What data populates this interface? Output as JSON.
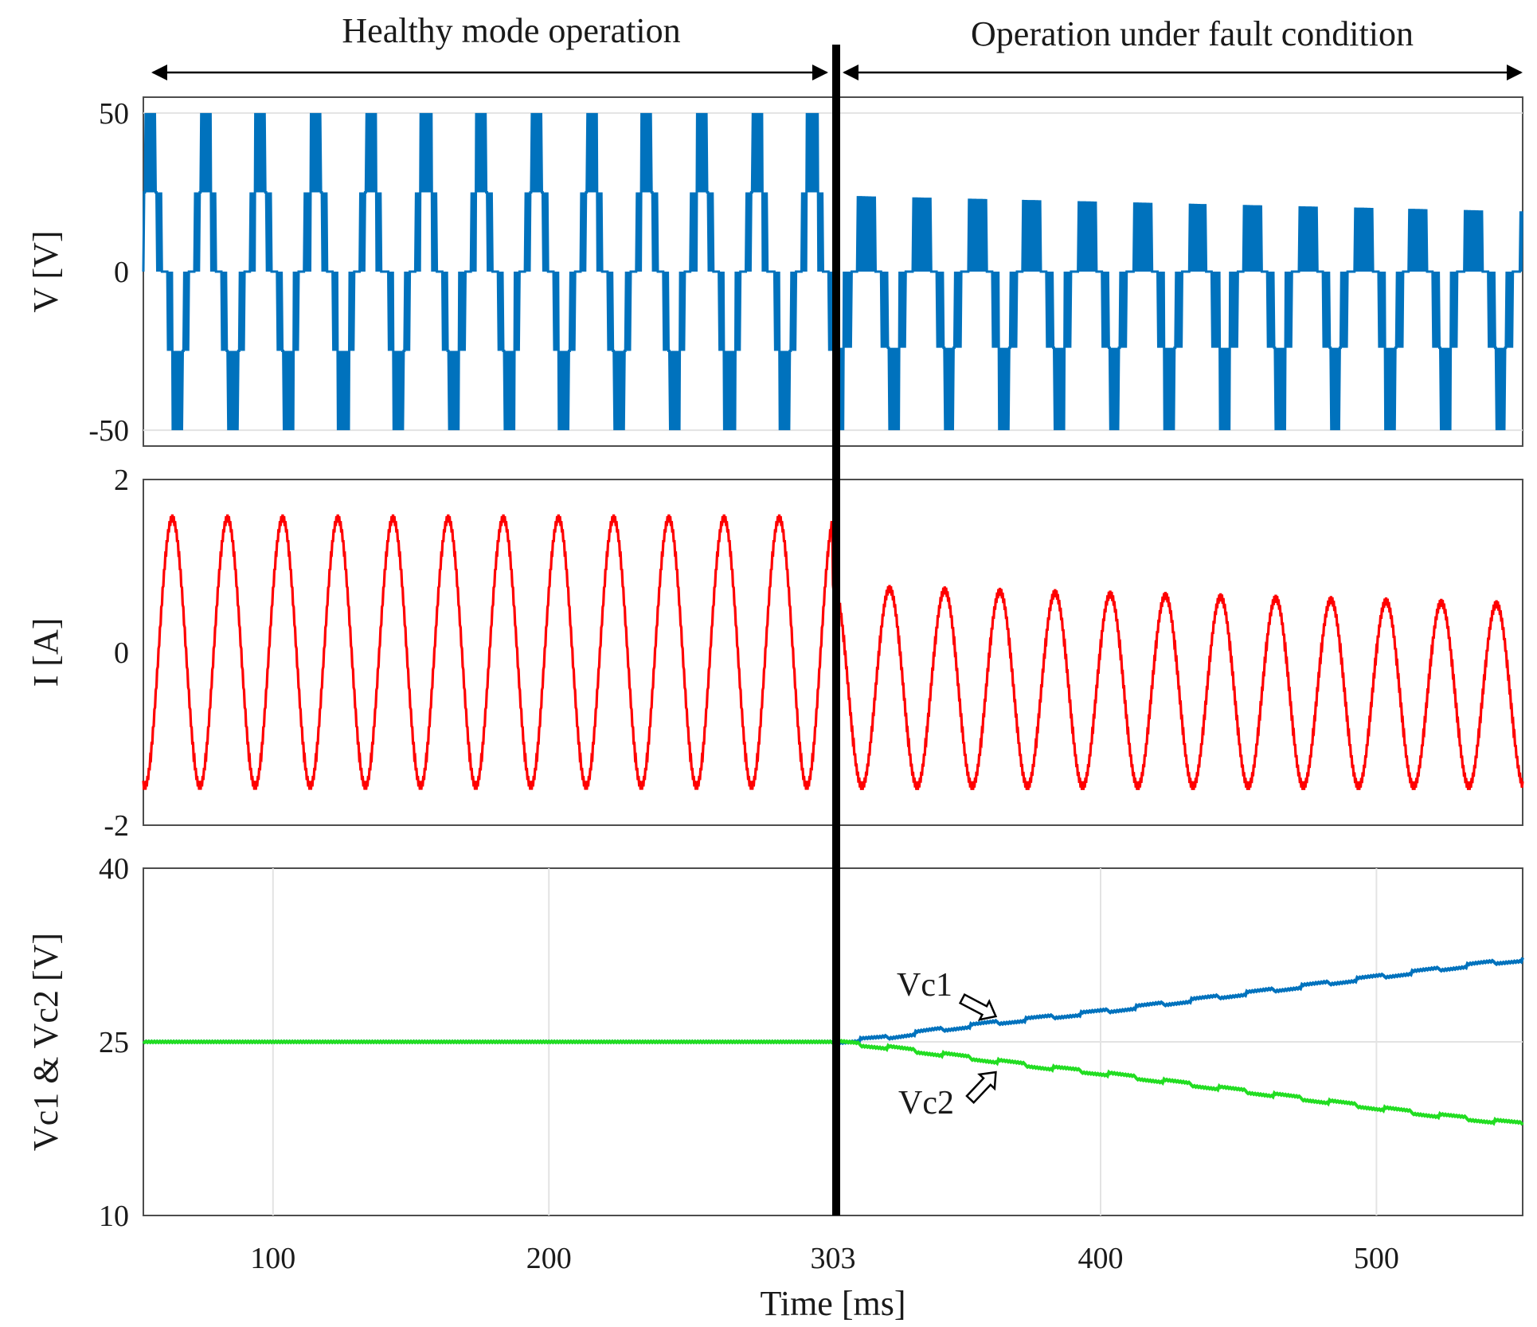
{
  "chart_data": [
    {
      "type": "line",
      "panel": "voltage",
      "ylabel": "V [V]",
      "ylim": [
        -55,
        55
      ],
      "yticks": [
        {
          "value": 50,
          "label": "50"
        },
        {
          "value": 0,
          "label": "0"
        },
        {
          "value": -50,
          "label": "-50"
        }
      ],
      "xlim": [
        53,
        553
      ],
      "series": [
        {
          "name": "V",
          "color": "#0072bd",
          "description": "five-level staircase output voltage with PWM ripple",
          "period_ms": 20,
          "healthy_levels": [
            50,
            25,
            0,
            -25,
            -50
          ],
          "fault_levels_start": [
            24,
            0,
            -24,
            -50
          ],
          "fault_levels_end": [
            19,
            0,
            -24,
            -50
          ]
        }
      ]
    },
    {
      "type": "line",
      "panel": "current",
      "ylabel": "I [A]",
      "ylim": [
        -2,
        2
      ],
      "yticks": [
        {
          "value": 2,
          "label": "2"
        },
        {
          "value": 0,
          "label": "0"
        },
        {
          "value": -2,
          "label": "-2"
        }
      ],
      "xlim": [
        53,
        553
      ],
      "series": [
        {
          "name": "I",
          "color": "#ff0000",
          "period_ms": 20,
          "healthy_peak": 1.55,
          "fault_peak_start": 0.75,
          "fault_peak_end": 0.55,
          "fault_trough": -1.55
        }
      ]
    },
    {
      "type": "line",
      "panel": "capacitor_voltages",
      "ylabel": "Vc1 & Vc2 [V]",
      "xlabel": "Time [ms]",
      "ylim": [
        10,
        40
      ],
      "yticks": [
        {
          "value": 40,
          "label": "40"
        },
        {
          "value": 25,
          "label": "25"
        },
        {
          "value": 10,
          "label": "10"
        }
      ],
      "xlim": [
        53,
        553
      ],
      "xticks": [
        {
          "value": 100,
          "label": "100"
        },
        {
          "value": 200,
          "label": "200"
        },
        {
          "value": 303,
          "label": "303"
        },
        {
          "value": 400,
          "label": "400"
        },
        {
          "value": 500,
          "label": "500"
        }
      ],
      "grid": true,
      "series": [
        {
          "name": "Vc1",
          "color": "#0072bd",
          "x": [
            53,
            303,
            320,
            340,
            360,
            380,
            400,
            420,
            440,
            460,
            480,
            500,
            520,
            540,
            553
          ],
          "y": [
            25,
            25,
            25.3,
            26.0,
            26.6,
            27.1,
            27.6,
            28.2,
            28.8,
            29.4,
            30.0,
            30.6,
            31.2,
            31.8,
            32.1
          ]
        },
        {
          "name": "Vc2",
          "color": "#22dd22",
          "x": [
            53,
            303,
            320,
            340,
            360,
            380,
            400,
            420,
            440,
            460,
            480,
            500,
            520,
            540,
            553
          ],
          "y": [
            25,
            25,
            24.6,
            24.0,
            23.4,
            22.8,
            22.3,
            21.7,
            21.1,
            20.5,
            19.9,
            19.3,
            18.7,
            18.2,
            17.9
          ]
        }
      ],
      "annotations": [
        {
          "label": "Vc1",
          "target_series": "Vc1",
          "at_x": 362
        },
        {
          "label": "Vc2",
          "target_series": "Vc2",
          "at_x": 362
        }
      ]
    }
  ],
  "figure": {
    "fault_time": 303,
    "headers": {
      "healthy": "Healthy mode operation",
      "fault": "Operation under fault condition"
    }
  }
}
